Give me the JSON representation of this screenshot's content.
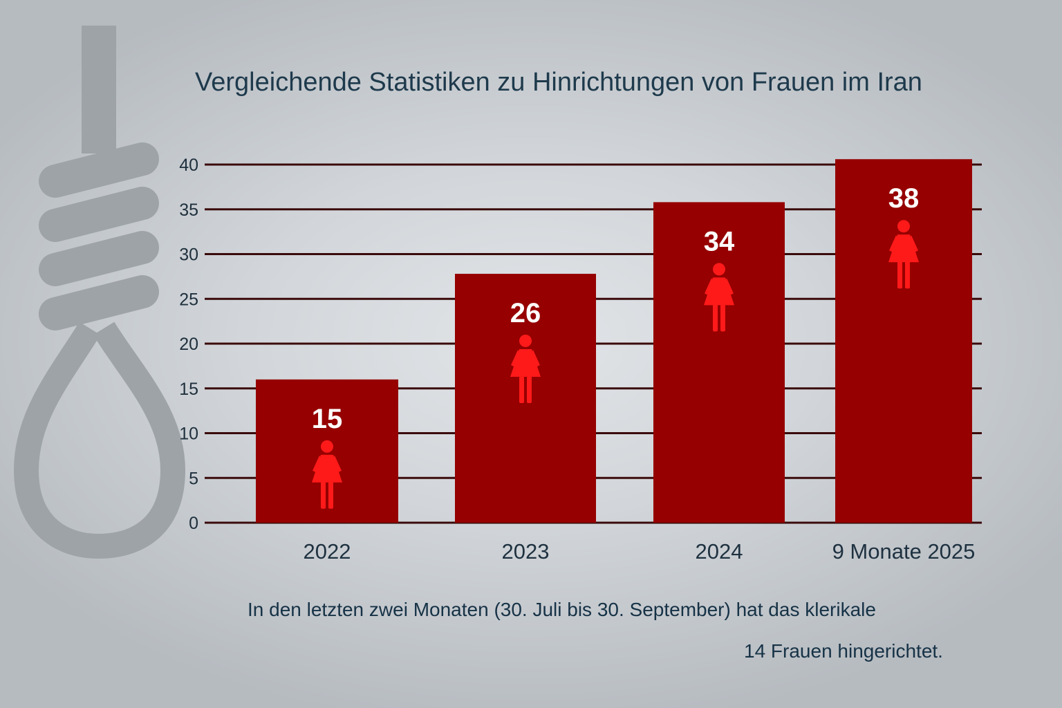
{
  "title": "Vergleichende Statistiken zu Hinrichtungen von Frauen im Iran",
  "caption_line1": "In den letzten zwei Monaten (30. Juli bis 30. September) hat das klerikale",
  "caption_line2": "14 Frauen hingerichtet.",
  "colors": {
    "bar": "#960000",
    "icon": "#ff1a1a",
    "gridline": "#3a0a0a",
    "noose": "#9ea3a7",
    "title": "#1e3a4c"
  },
  "icons": {
    "background": "noose-icon",
    "bar_marker": "woman-icon"
  },
  "chart_data": {
    "type": "bar",
    "title": "Vergleichende Statistiken zu Hinrichtungen von Frauen im Iran",
    "xlabel": "",
    "ylabel": "",
    "categories": [
      "2022",
      "2023",
      "2024",
      "9 Monate 2025"
    ],
    "values": [
      15,
      26,
      34,
      38
    ],
    "bar_heights": [
      16,
      27.8,
      35.8,
      40.6
    ],
    "value_labels": [
      "15",
      "26",
      "34",
      "38"
    ],
    "ylim": [
      0,
      40
    ],
    "yticks": [
      0,
      5,
      10,
      15,
      20,
      25,
      30,
      35,
      40
    ],
    "grid": true,
    "legend": "none"
  }
}
